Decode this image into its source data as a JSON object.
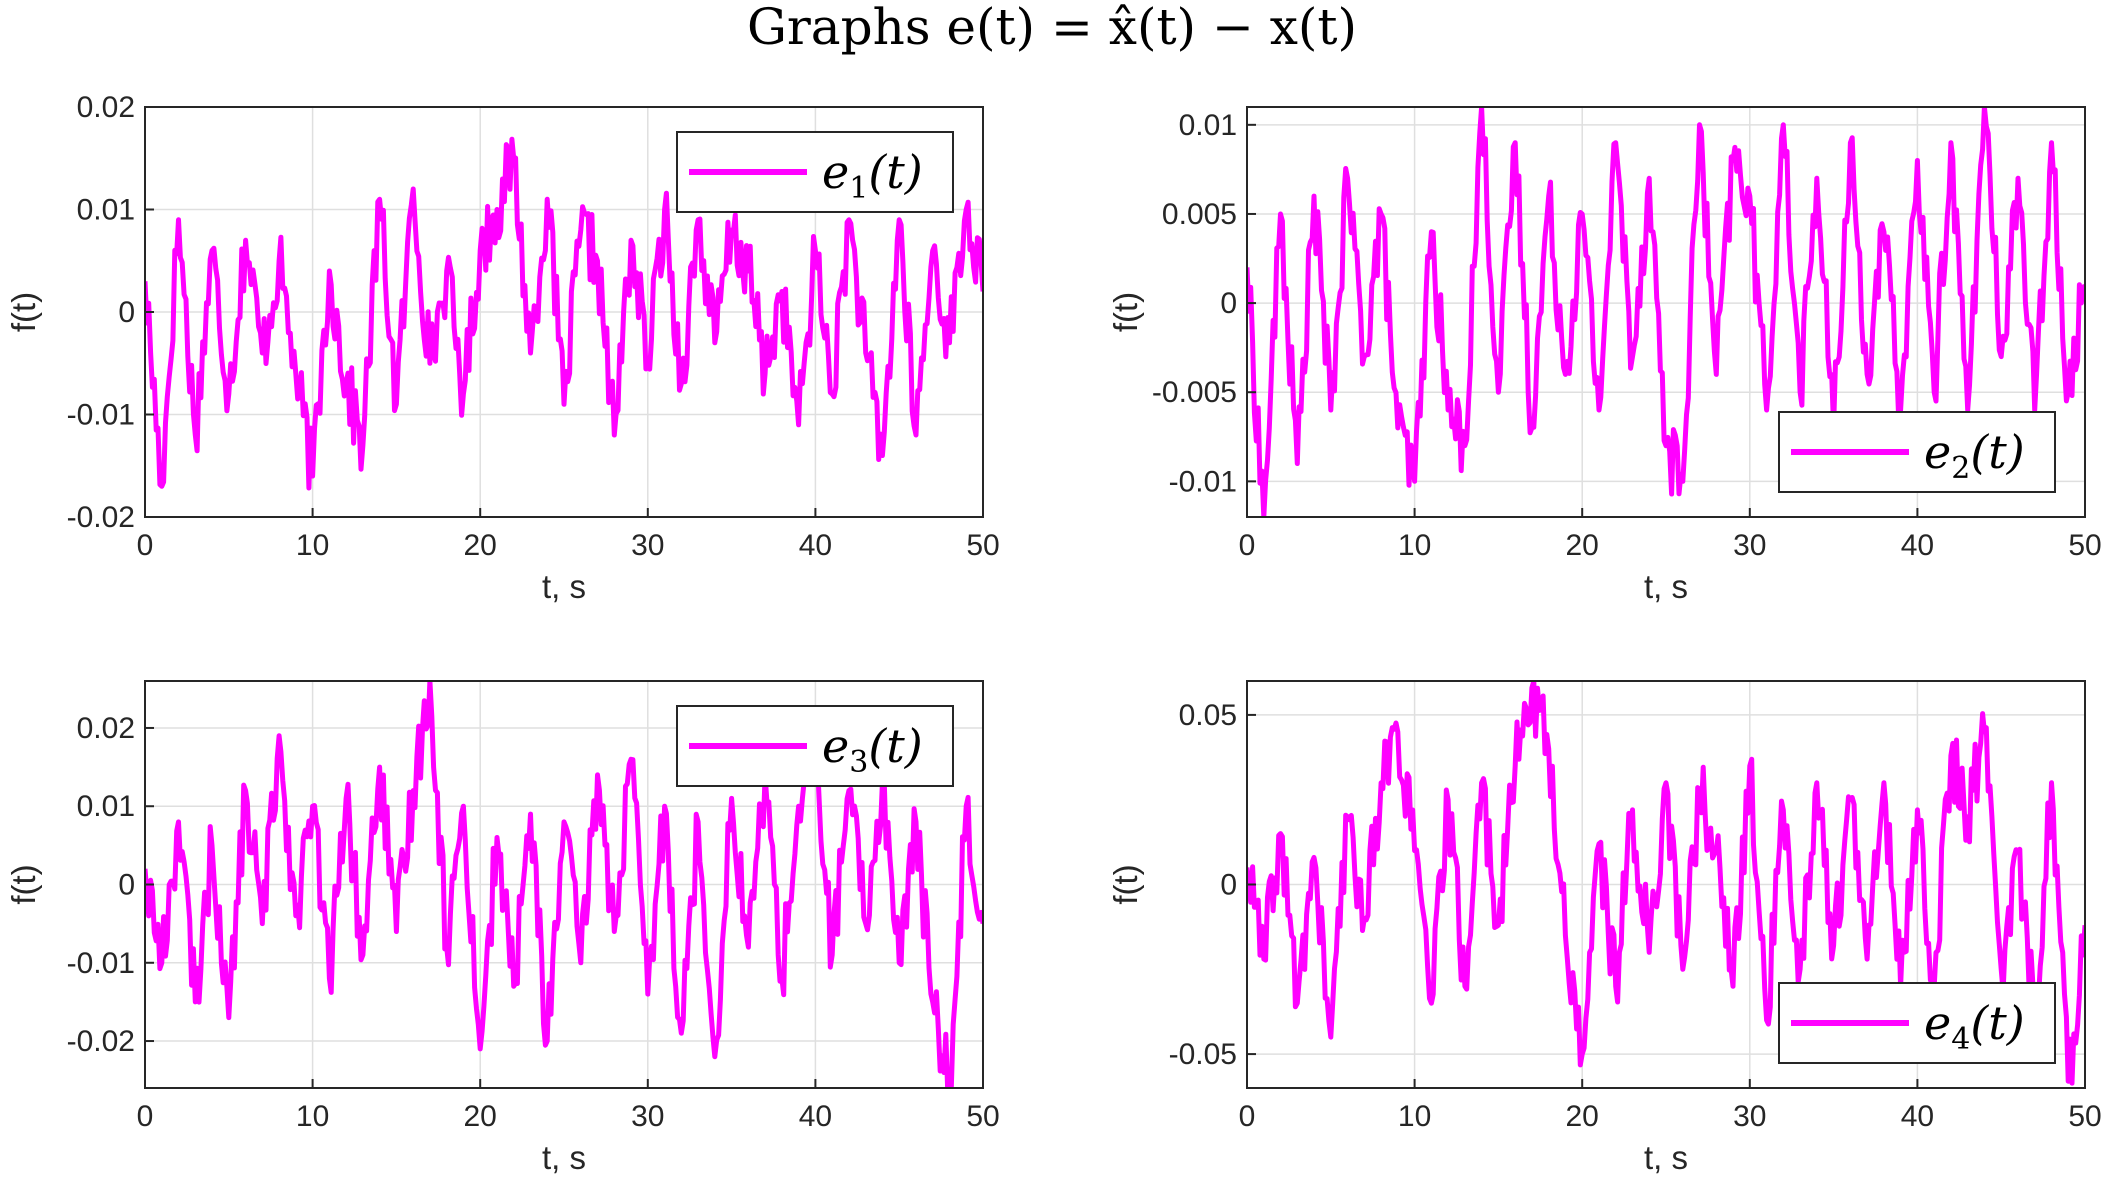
{
  "figure_title": "Graphs e(t) = x̂(t) − x(t)",
  "colors": {
    "line": "#ff00ff",
    "grid": "#dfdfdf",
    "axes": "#262626"
  },
  "chart_data": [
    {
      "type": "line",
      "position": "top-left",
      "xlabel": "t, s",
      "ylabel": "f(t)",
      "xlim": [
        0,
        50
      ],
      "ylim": [
        -0.02,
        0.02
      ],
      "xticks": [
        0,
        10,
        20,
        30,
        40,
        50
      ],
      "xtick_labels": [
        "0",
        "10",
        "20",
        "30",
        "40",
        "50"
      ],
      "yticks": [
        -0.02,
        -0.01,
        0,
        0.01,
        0.02
      ],
      "ytick_labels": [
        "-0.02",
        "-0.01",
        "0",
        "0.01",
        "0.02"
      ],
      "grid": true,
      "legend_position": "top-right",
      "series": [
        {
          "name": "e1(t)",
          "label_main": "e",
          "label_sub": "1",
          "label_tail": "(t)",
          "color": "#ff00ff",
          "x": [
            0,
            1,
            2,
            3,
            4,
            5,
            6,
            7,
            8,
            9,
            10,
            11,
            12,
            13,
            14,
            15,
            16,
            17,
            18,
            19,
            20,
            21,
            22,
            23,
            24,
            25,
            26,
            27,
            28,
            29,
            30,
            31,
            32,
            33,
            34,
            35,
            36,
            37,
            38,
            39,
            40,
            41,
            42,
            43,
            44,
            45,
            46,
            47,
            48,
            49,
            50
          ],
          "y": [
            0.003,
            -0.017,
            0.009,
            -0.012,
            0.006,
            -0.008,
            0.007,
            -0.004,
            0.005,
            -0.006,
            -0.016,
            0.004,
            -0.007,
            -0.013,
            0.011,
            -0.009,
            0.012,
            -0.005,
            0.004,
            -0.008,
            0.006,
            0.01,
            0.015,
            -0.004,
            0.011,
            -0.009,
            0.008,
            0.005,
            -0.012,
            0.007,
            -0.005,
            0.01,
            -0.007,
            0.009,
            -0.003,
            0.008,
            0.004,
            -0.006,
            0.002,
            -0.011,
            0.006,
            -0.008,
            0.009,
            -0.004,
            -0.014,
            0.009,
            -0.012,
            0.006,
            -0.003,
            0.01,
            0.002
          ]
        }
      ]
    },
    {
      "type": "line",
      "position": "top-right",
      "xlabel": "t, s",
      "ylabel": "f(t)",
      "xlim": [
        0,
        50
      ],
      "ylim": [
        -0.012,
        0.011
      ],
      "xticks": [
        0,
        10,
        20,
        30,
        40,
        50
      ],
      "xtick_labels": [
        "0",
        "10",
        "20",
        "30",
        "40",
        "50"
      ],
      "yticks": [
        -0.01,
        -0.005,
        0,
        0.005,
        0.01
      ],
      "ytick_labels": [
        "-0.01",
        "-0.005",
        "0",
        "0.005",
        "0.01"
      ],
      "grid": true,
      "legend_position": "bottom-right",
      "series": [
        {
          "name": "e2(t)",
          "label_main": "e",
          "label_sub": "2",
          "label_tail": "(t)",
          "color": "#ff00ff",
          "x": [
            0,
            1,
            2,
            3,
            4,
            5,
            6,
            7,
            8,
            9,
            10,
            11,
            12,
            13,
            14,
            15,
            16,
            17,
            18,
            19,
            20,
            21,
            22,
            23,
            24,
            25,
            26,
            27,
            28,
            29,
            30,
            31,
            32,
            33,
            34,
            35,
            36,
            37,
            38,
            39,
            40,
            41,
            42,
            43,
            44,
            45,
            46,
            47,
            48,
            49,
            50
          ],
          "y": [
            0.002,
            -0.012,
            0.005,
            -0.009,
            0.006,
            -0.006,
            0.007,
            -0.003,
            0.005,
            -0.007,
            -0.01,
            0.004,
            -0.006,
            -0.008,
            0.011,
            -0.005,
            0.009,
            -0.007,
            0.006,
            -0.004,
            0.005,
            -0.006,
            0.009,
            -0.003,
            0.007,
            -0.008,
            -0.01,
            0.01,
            -0.004,
            0.008,
            0.006,
            -0.006,
            0.01,
            -0.005,
            0.007,
            -0.007,
            0.009,
            -0.004,
            0.004,
            -0.006,
            0.008,
            -0.005,
            0.009,
            -0.006,
            0.011,
            -0.003,
            0.007,
            -0.006,
            0.009,
            -0.005,
            0.001
          ]
        }
      ]
    },
    {
      "type": "line",
      "position": "bottom-left",
      "xlabel": "t, s",
      "ylabel": "f(t)",
      "xlim": [
        0,
        50
      ],
      "ylim": [
        -0.026,
        0.026
      ],
      "xticks": [
        0,
        10,
        20,
        30,
        40,
        50
      ],
      "xtick_labels": [
        "0",
        "10",
        "20",
        "30",
        "40",
        "50"
      ],
      "yticks": [
        -0.02,
        -0.01,
        0,
        0.01,
        0.02
      ],
      "ytick_labels": [
        "-0.02",
        "-0.01",
        "0",
        "0.01",
        "0.02"
      ],
      "grid": true,
      "legend_position": "top-right",
      "series": [
        {
          "name": "e3(t)",
          "label_main": "e",
          "label_sub": "3",
          "label_tail": "(t)",
          "color": "#ff00ff",
          "x": [
            0,
            1,
            2,
            3,
            4,
            5,
            6,
            7,
            8,
            9,
            10,
            11,
            12,
            13,
            14,
            15,
            16,
            17,
            18,
            19,
            20,
            21,
            22,
            23,
            24,
            25,
            26,
            27,
            28,
            29,
            30,
            31,
            32,
            33,
            34,
            35,
            36,
            37,
            38,
            39,
            40,
            41,
            42,
            43,
            44,
            45,
            46,
            47,
            48,
            49,
            50
          ],
          "y": [
            0.002,
            -0.01,
            0.008,
            -0.015,
            0.005,
            -0.017,
            0.012,
            -0.005,
            0.019,
            -0.004,
            0.01,
            -0.012,
            0.011,
            -0.009,
            0.015,
            -0.006,
            0.012,
            0.026,
            -0.008,
            0.01,
            -0.021,
            0.006,
            -0.013,
            0.009,
            -0.02,
            0.008,
            -0.01,
            0.014,
            -0.006,
            0.016,
            -0.014,
            0.01,
            -0.019,
            0.008,
            -0.022,
            0.011,
            -0.008,
            0.014,
            -0.012,
            0.01,
            0.016,
            -0.009,
            0.012,
            -0.005,
            0.013,
            -0.01,
            0.008,
            -0.015,
            -0.026,
            0.01,
            -0.005
          ]
        }
      ]
    },
    {
      "type": "line",
      "position": "bottom-right",
      "xlabel": "t, s",
      "ylabel": "f(t)",
      "xlim": [
        0,
        50
      ],
      "ylim": [
        -0.06,
        0.06
      ],
      "xticks": [
        0,
        10,
        20,
        30,
        40,
        50
      ],
      "xtick_labels": [
        "0",
        "10",
        "20",
        "30",
        "40",
        "50"
      ],
      "yticks": [
        -0.05,
        0,
        0.05
      ],
      "ytick_labels": [
        "-0.05",
        "0",
        "0.05"
      ],
      "grid": true,
      "legend_position": "bottom-right",
      "series": [
        {
          "name": "e4(t)",
          "label_main": "e",
          "label_sub": "4",
          "label_tail": "(t)",
          "color": "#ff00ff",
          "x": [
            0,
            1,
            2,
            3,
            4,
            5,
            6,
            7,
            8,
            9,
            10,
            11,
            12,
            13,
            14,
            15,
            16,
            17,
            18,
            19,
            20,
            21,
            22,
            23,
            24,
            25,
            26,
            27,
            28,
            29,
            30,
            31,
            32,
            33,
            34,
            35,
            36,
            37,
            38,
            39,
            40,
            41,
            42,
            43,
            44,
            45,
            46,
            47,
            48,
            49,
            50
          ],
          "y": [
            0.005,
            -0.022,
            0.015,
            -0.035,
            0.008,
            -0.045,
            0.02,
            -0.01,
            0.03,
            0.045,
            0.01,
            -0.035,
            0.025,
            -0.03,
            0.03,
            -0.012,
            0.035,
            0.058,
            0.04,
            -0.015,
            -0.05,
            0.012,
            -0.03,
            0.022,
            -0.02,
            0.03,
            -0.025,
            0.028,
            0.01,
            -0.03,
            0.035,
            -0.04,
            0.022,
            -0.025,
            0.03,
            -0.018,
            0.025,
            -0.022,
            0.03,
            -0.03,
            0.022,
            -0.03,
            0.038,
            0.02,
            0.045,
            -0.025,
            0.01,
            -0.04,
            0.03,
            -0.058,
            -0.012
          ]
        }
      ]
    }
  ]
}
